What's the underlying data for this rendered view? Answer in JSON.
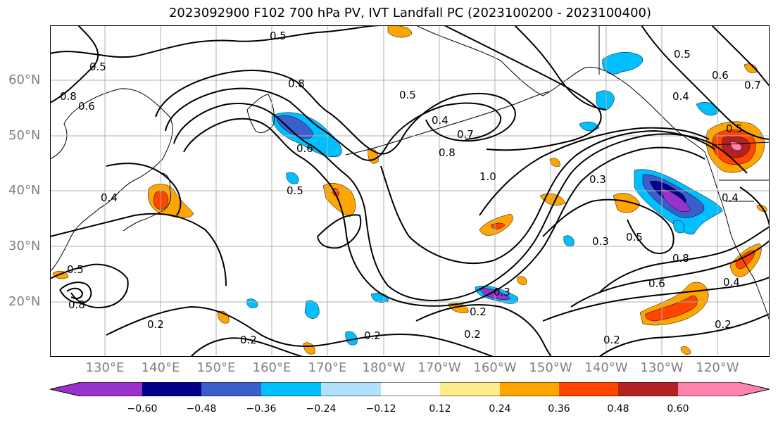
{
  "title": "2023092900 F102 700 hPa PV, IVT Landfall PC (2023100200 - 2023100400)",
  "lat_labels": [
    "60°N",
    "50°N",
    "40°N",
    "30°N",
    "20°N"
  ],
  "lon_labels": [
    "130°E",
    "140°E",
    "150°E",
    "160°E",
    "170°E",
    "180°W",
    "170°W",
    "160°W",
    "150°W",
    "140°W",
    "130°W",
    "120°W"
  ],
  "colorbar": {
    "ticks": [
      "−0.60",
      "−0.48",
      "−0.36",
      "−0.24",
      "−0.12",
      "0.12",
      "0.24",
      "0.36",
      "0.48",
      "0.60"
    ],
    "colors": [
      "#9932cc",
      "#00008b",
      "#3a5fcd",
      "#00bfff",
      "#b0e2ff",
      "#ffffff",
      "#ffec8b",
      "#ffa500",
      "#ff4500",
      "#b22222",
      "#ff82ab"
    ]
  },
  "contour_labels": [
    "0.5",
    "0.5",
    "0.8",
    "0.8",
    "0.5",
    "0.4",
    "0.7",
    "0.8",
    "1.0",
    "0.6",
    "0.6",
    "0.5",
    "0.4",
    "0.5",
    "0.6",
    "0.7",
    "0.4",
    "0.5",
    "0.3",
    "0.3",
    "0.5",
    "0.8",
    "0.6",
    "0.4",
    "0.5",
    "0.8",
    "0.2",
    "0.2",
    "0.2",
    "0.2",
    "0.2",
    "0.3",
    "0.4",
    "0.2",
    "0.2"
  ]
}
